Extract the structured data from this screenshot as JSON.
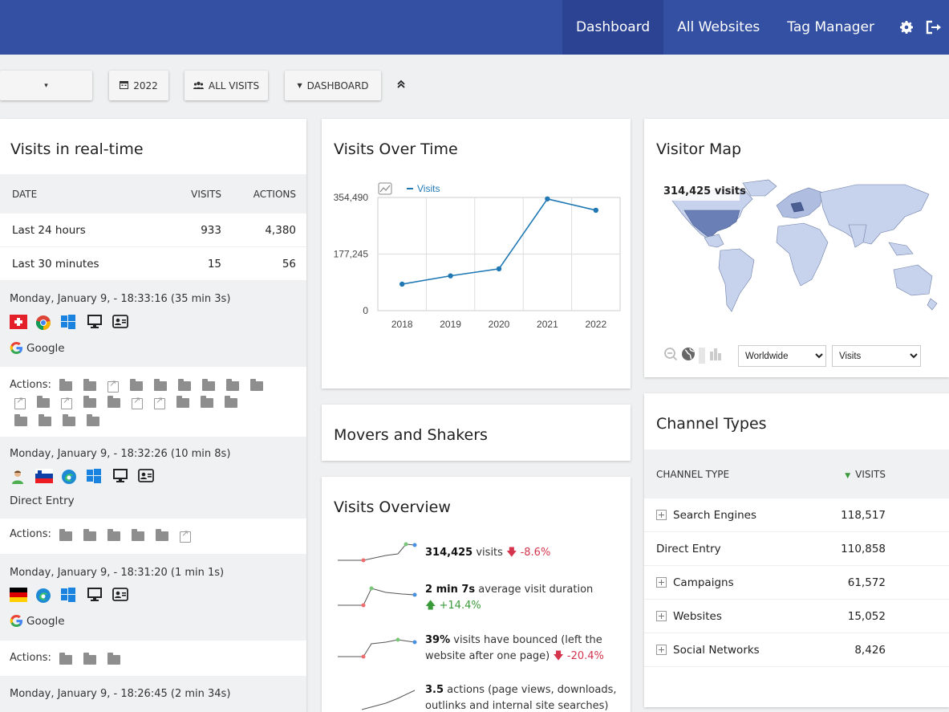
{
  "nav": {
    "items": [
      {
        "label": "Dashboard",
        "active": true
      },
      {
        "label": "All Websites",
        "active": false
      },
      {
        "label": "Tag Manager",
        "active": false
      }
    ],
    "icons": [
      "gear-icon",
      "logout-icon"
    ]
  },
  "toolbar": {
    "site_selector": "▾",
    "period": "2022",
    "segment": "ALL VISITS",
    "dashboard": "DASHBOARD",
    "collapse_icon": "double-chevron-up-icon"
  },
  "realtime": {
    "title": "Visits in real-time",
    "columns": [
      "DATE",
      "VISITS",
      "ACTIONS"
    ],
    "rows": [
      {
        "date": "Last 24 hours",
        "visits": "933",
        "actions": "4,380"
      },
      {
        "date": "Last 30 minutes",
        "visits": "15",
        "actions": "56"
      }
    ],
    "visits": [
      {
        "time": "Monday, January 9, - 18:33:16 (35 min 3s)",
        "referrer": "Google",
        "actions_label": "Actions:"
      },
      {
        "time": "Monday, January 9, - 18:32:26 (10 min 8s)",
        "referrer": "Direct Entry",
        "actions_label": "Actions:"
      },
      {
        "time": "Monday, January 9, - 18:31:20 (1 min 1s)",
        "referrer": "Google",
        "actions_label": "Actions:"
      },
      {
        "time": "Monday, January 9, - 18:26:45 (2 min 34s)"
      }
    ]
  },
  "visits_over_time": {
    "title": "Visits Over Time",
    "chart_data": {
      "type": "line",
      "x": [
        "2018",
        "2019",
        "2020",
        "2021",
        "2022"
      ],
      "series": [
        {
          "name": "Visits",
          "values": [
            83000,
            109000,
            131000,
            350000,
            314425
          ]
        }
      ],
      "ylim": [
        0,
        354490
      ],
      "yticks": [
        "0",
        "177,245",
        "354,490"
      ],
      "legend": "top-left",
      "grid": true,
      "color": "#1f78b4"
    }
  },
  "movers": {
    "title": "Movers and Shakers"
  },
  "overview": {
    "title": "Visits Overview",
    "items": [
      {
        "value": "314,425",
        "label": "visits",
        "change": "-8.6%",
        "dir": "down"
      },
      {
        "value": "2 min 7s",
        "label": "average visit duration",
        "change": "+14.4%",
        "dir": "up"
      },
      {
        "value": "39%",
        "label": "visits have bounced (left the website after one page)",
        "change": "-20.4%",
        "dir": "down"
      },
      {
        "value": "3.5",
        "label": "actions (page views, downloads, outlinks and internal site searches) per"
      }
    ]
  },
  "visitor_map": {
    "title": "Visitor Map",
    "tooltip": "314,425 visits",
    "region_options": [
      "Worldwide"
    ],
    "metric_options": [
      "Visits"
    ]
  },
  "channels": {
    "title": "Channel Types",
    "columns": [
      "CHANNEL TYPE",
      "VISITS"
    ],
    "rows": [
      {
        "name": "Search Engines",
        "visits": "118,517",
        "expandable": true
      },
      {
        "name": "Direct Entry",
        "visits": "110,858",
        "expandable": false
      },
      {
        "name": "Campaigns",
        "visits": "61,572",
        "expandable": true
      },
      {
        "name": "Websites",
        "visits": "15,052",
        "expandable": true
      },
      {
        "name": "Social Networks",
        "visits": "8,426",
        "expandable": true
      }
    ]
  }
}
